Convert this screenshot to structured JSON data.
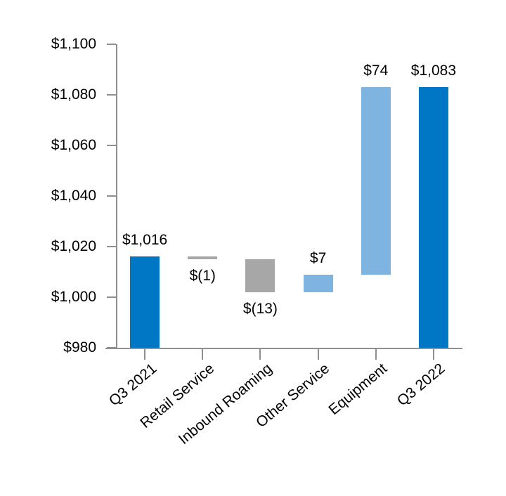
{
  "chart_data": {
    "type": "bar",
    "subtype": "waterfall",
    "title": "",
    "xlabel": "",
    "ylabel": "",
    "grid": false,
    "legend": null,
    "categories": [
      "Q3 2021",
      "Retail Service",
      "Inbound Roaming",
      "Other Service",
      "Equipment",
      "Q3 2022"
    ],
    "values": [
      1016,
      -1,
      -13,
      7,
      74,
      1083
    ],
    "bars": [
      {
        "category": "Q3 2021",
        "value": 1016,
        "label": "$1,016",
        "start": 980,
        "end": 1016,
        "color_key": "dark_blue",
        "label_position": "above"
      },
      {
        "category": "Retail Service",
        "value": -1,
        "label": "$(1)",
        "start": 1016,
        "end": 1015,
        "color_key": "gray",
        "label_position": "below"
      },
      {
        "category": "Inbound Roaming",
        "value": -13,
        "label": "$(13)",
        "start": 1015,
        "end": 1002,
        "color_key": "gray",
        "label_position": "below"
      },
      {
        "category": "Other Service",
        "value": 7,
        "label": "$7",
        "start": 1002,
        "end": 1009,
        "color_key": "light_blue",
        "label_position": "above"
      },
      {
        "category": "Equipment",
        "value": 74,
        "label": "$74",
        "start": 1009,
        "end": 1083,
        "color_key": "light_blue",
        "label_position": "above"
      },
      {
        "category": "Q3 2022",
        "value": 1083,
        "label": "$1,083",
        "start": 980,
        "end": 1083,
        "color_key": "dark_blue",
        "label_position": "above"
      }
    ],
    "y_axis": {
      "min": 980,
      "max": 1100,
      "tick_step": 20,
      "tick_labels": [
        "$980",
        "$1,000",
        "$1,020",
        "$1,040",
        "$1,060",
        "$1,080",
        "$1,100"
      ]
    },
    "x_axis": {
      "label_rotation_deg": -40
    },
    "colors": {
      "dark_blue": "#0077C5",
      "light_blue": "#7FB4E0",
      "gray": "#A7A7A7",
      "axis": "#8F8F8F",
      "text": "#000000"
    }
  }
}
